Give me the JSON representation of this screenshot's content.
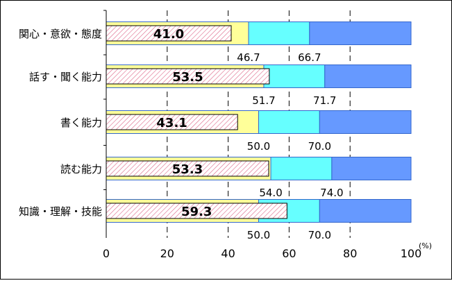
{
  "chart_data": {
    "type": "bar",
    "orientation": "horizontal",
    "stacked": true,
    "categories": [
      "関心・意欲・態度",
      "話す・聞く能力",
      "書く能力",
      "読む能力",
      "知識・理解・技能"
    ],
    "band_boundaries": [
      [
        46.7,
        66.7
      ],
      [
        51.7,
        71.7
      ],
      [
        50.0,
        70.0
      ],
      [
        54.0,
        74.0
      ],
      [
        50.0,
        70.0
      ]
    ],
    "band_labels": [
      [
        "46.7",
        "66.7"
      ],
      [
        "51.7",
        "71.7"
      ],
      [
        "50.0",
        "70.0"
      ],
      [
        "54.0",
        "74.0"
      ],
      [
        "50.0",
        "70.0"
      ]
    ],
    "values": [
      41.0,
      53.5,
      43.1,
      53.3,
      59.3
    ],
    "value_labels": [
      "41.0",
      "53.5",
      "43.1",
      "53.3",
      "59.3"
    ],
    "x_ticks": [
      "0",
      "20",
      "40",
      "60",
      "80",
      "100"
    ],
    "xlim": [
      0,
      100
    ],
    "unit_label": "(%)",
    "grid": true,
    "colors": {
      "band_low": "#ffff99",
      "band_mid": "#66ffff",
      "band_high": "#6699ff",
      "band_edge": "#3366cc",
      "value_bar_fill": "#ffffff",
      "value_bar_hatch": "#dd6688",
      "gridline": "#000000",
      "frame": "#000000"
    }
  }
}
